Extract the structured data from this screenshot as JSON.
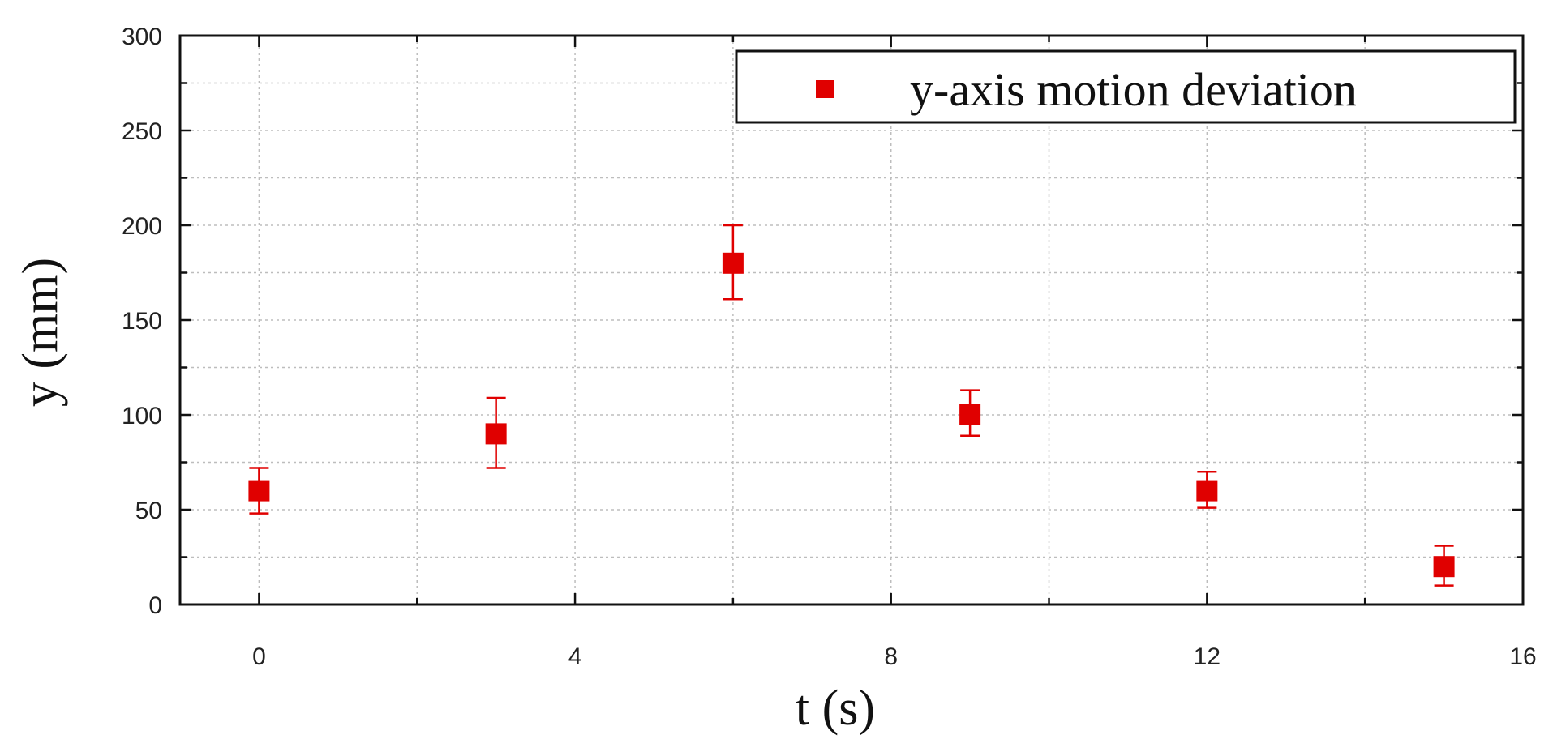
{
  "chart_data": {
    "type": "scatter",
    "xlabel": "t (s)",
    "ylabel": "y (mm)",
    "xlim": [
      -1,
      16
    ],
    "ylim": [
      0,
      300
    ],
    "xticks": [
      0,
      4,
      8,
      12,
      16
    ],
    "yticks": [
      0,
      50,
      100,
      150,
      200,
      250,
      300
    ],
    "grid": true,
    "legend_position": "top-right",
    "series": [
      {
        "name": "y-axis motion deviation",
        "color": "#e00000",
        "marker": "square",
        "points": [
          {
            "x": 0,
            "y": 60,
            "err_low": 48,
            "err_high": 72
          },
          {
            "x": 3,
            "y": 90,
            "err_low": 72,
            "err_high": 109
          },
          {
            "x": 6,
            "y": 180,
            "err_low": 161,
            "err_high": 200
          },
          {
            "x": 9,
            "y": 100,
            "err_low": 89,
            "err_high": 113
          },
          {
            "x": 12,
            "y": 60,
            "err_low": 51,
            "err_high": 70
          },
          {
            "x": 15,
            "y": 20,
            "err_low": 10,
            "err_high": 31
          }
        ]
      }
    ]
  }
}
